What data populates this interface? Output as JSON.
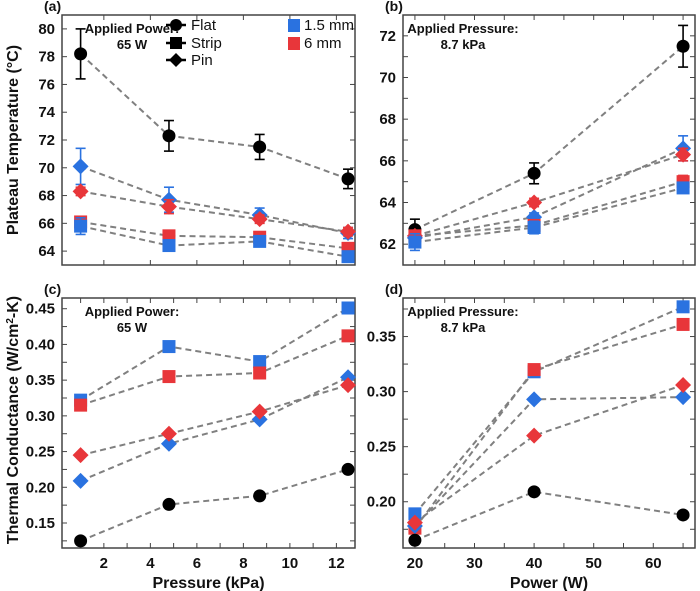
{
  "colors": {
    "blue": "#2a72e0",
    "red": "#e8363a",
    "black": "#000000",
    "line": "#808080",
    "axis": "#444444"
  },
  "legend": {
    "shapes": [
      {
        "label": "Flat",
        "marker": "circle"
      },
      {
        "label": "Strip",
        "marker": "square"
      },
      {
        "label": "Pin",
        "marker": "diamond"
      }
    ],
    "sizes": [
      {
        "label": "1.5 mm",
        "color": "blue"
      },
      {
        "label": "6 mm",
        "color": "red"
      }
    ],
    "placement": "top-right of panel (a)"
  },
  "ylabels": {
    "top": "Plateau Temperature (°C)",
    "bottom_prefix": "Thermal Conductance (W/cm",
    "bottom_sup": "2",
    "bottom_suffix": "-K)"
  },
  "chart_data": [
    {
      "id": "a",
      "panel_label": "(a)",
      "type": "scatter",
      "annotation": [
        "Applied Power:",
        "65 W"
      ],
      "xlabel": "",
      "ylabel": "Plateau Temperature (°C)",
      "xlim": [
        0.2,
        12.8
      ],
      "ylim": [
        63,
        81
      ],
      "xticks": [
        2,
        4,
        6,
        8,
        10,
        12
      ],
      "show_xtick_labels": false,
      "yticks": [
        64,
        66,
        68,
        70,
        72,
        74,
        76,
        78,
        80
      ],
      "ytick_labels": [
        "64",
        "66",
        "68",
        "70",
        "72",
        "74",
        "76",
        "78",
        "80"
      ],
      "x": [
        1.0,
        4.8,
        8.7,
        12.5
      ],
      "series": [
        {
          "name": "Flat",
          "marker": "circle",
          "color": "black",
          "values": [
            78.2,
            72.3,
            71.5,
            69.2
          ],
          "err": [
            1.8,
            1.1,
            0.9,
            0.7
          ]
        },
        {
          "name": "Pin 1.5 mm",
          "marker": "diamond",
          "color": "blue",
          "values": [
            70.1,
            67.7,
            66.6,
            65.3
          ],
          "err": [
            1.3,
            0.9,
            0.5,
            0.4
          ]
        },
        {
          "name": "Pin 6 mm",
          "marker": "diamond",
          "color": "red",
          "values": [
            68.3,
            67.2,
            66.3,
            65.4
          ],
          "err": [
            0.3,
            0.5,
            0.3,
            0.3
          ]
        },
        {
          "name": "Strip 6 mm",
          "marker": "square",
          "color": "red",
          "values": [
            66.1,
            65.1,
            65.0,
            64.2
          ],
          "err": [
            0.3,
            0.2,
            0.2,
            0.3
          ]
        },
        {
          "name": "Strip 1.5 mm",
          "marker": "square",
          "color": "blue",
          "values": [
            65.8,
            64.4,
            64.7,
            63.6
          ],
          "err": [
            0.6,
            0.2,
            0.2,
            0.2
          ]
        }
      ]
    },
    {
      "id": "b",
      "panel_label": "(b)",
      "type": "scatter",
      "annotation": [
        "Applied Pressure:",
        "8.7 kPa"
      ],
      "xlabel": "",
      "ylabel": "",
      "xlim": [
        18,
        67
      ],
      "ylim": [
        61,
        73
      ],
      "xticks": [
        20,
        25,
        30,
        35,
        40,
        45,
        50,
        55,
        60,
        65
      ],
      "show_xtick_labels": false,
      "yticks": [
        62,
        63,
        64,
        65,
        66,
        67,
        68,
        69,
        70,
        71,
        72
      ],
      "ytick_labels": [
        "62",
        "",
        "64",
        "",
        "66",
        "",
        "68",
        "",
        "70",
        "",
        "72"
      ],
      "x": [
        20,
        40,
        65
      ],
      "series": [
        {
          "name": "Flat",
          "marker": "circle",
          "color": "black",
          "values": [
            62.7,
            65.4,
            71.5
          ],
          "err": [
            0.5,
            0.5,
            1.0
          ]
        },
        {
          "name": "Pin 1.5 mm",
          "marker": "diamond",
          "color": "blue",
          "values": [
            62.3,
            63.3,
            66.6
          ],
          "err": [
            0.2,
            0.2,
            0.6
          ]
        },
        {
          "name": "Pin 6 mm",
          "marker": "diamond",
          "color": "red",
          "values": [
            62.4,
            64.0,
            66.3
          ],
          "err": [
            0.2,
            0.2,
            0.3
          ]
        },
        {
          "name": "Strip 6 mm",
          "marker": "square",
          "color": "red",
          "values": [
            62.4,
            62.9,
            65.0
          ],
          "err": [
            0.2,
            0.2,
            0.3
          ]
        },
        {
          "name": "Strip 1.5 mm",
          "marker": "square",
          "color": "blue",
          "values": [
            62.1,
            62.8,
            64.7
          ],
          "err": [
            0.4,
            0.3,
            0.2
          ]
        }
      ]
    },
    {
      "id": "c",
      "panel_label": "(c)",
      "type": "scatter",
      "annotation": [
        "Applied Power:",
        "65 W"
      ],
      "xlabel": "Pressure (kPa)",
      "ylabel": "Thermal Conductance (W/cm²-K)",
      "xlim": [
        0.2,
        12.8
      ],
      "ylim": [
        0.115,
        0.465
      ],
      "xticks": [
        1,
        2,
        3,
        4,
        5,
        6,
        7,
        8,
        9,
        10,
        11,
        12
      ],
      "xtick_labels": [
        "",
        "2",
        "",
        "4",
        "",
        "6",
        "",
        "8",
        "",
        "10",
        "",
        "12"
      ],
      "show_xtick_labels": true,
      "yticks": [
        0.125,
        0.15,
        0.175,
        0.2,
        0.225,
        0.25,
        0.275,
        0.3,
        0.325,
        0.35,
        0.375,
        0.4,
        0.425,
        0.45
      ],
      "ytick_labels": [
        "",
        "0.15",
        "",
        "0.20",
        "",
        "0.25",
        "",
        "0.30",
        "",
        "0.35",
        "",
        "0.40",
        "",
        "0.45"
      ],
      "x": [
        1.0,
        4.8,
        8.7,
        12.5
      ],
      "series": [
        {
          "name": "Strip 1.5 mm",
          "marker": "square",
          "color": "blue",
          "values": [
            0.322,
            0.397,
            0.376,
            0.451
          ]
        },
        {
          "name": "Strip 6 mm",
          "marker": "square",
          "color": "red",
          "values": [
            0.315,
            0.355,
            0.36,
            0.412
          ]
        },
        {
          "name": "Pin 1.5 mm",
          "marker": "diamond",
          "color": "blue",
          "values": [
            0.209,
            0.261,
            0.295,
            0.354
          ]
        },
        {
          "name": "Pin 6 mm",
          "marker": "diamond",
          "color": "red",
          "values": [
            0.245,
            0.275,
            0.306,
            0.343
          ]
        },
        {
          "name": "Flat",
          "marker": "circle",
          "color": "black",
          "values": [
            0.125,
            0.176,
            0.188,
            0.225
          ]
        }
      ]
    },
    {
      "id": "d",
      "panel_label": "(d)",
      "type": "scatter",
      "annotation": [
        "Applied Pressure:",
        "8.7 kPa"
      ],
      "xlabel": "Power (W)",
      "ylabel": "",
      "xlim": [
        18,
        67
      ],
      "ylim": [
        0.158,
        0.385
      ],
      "xticks": [
        20,
        25,
        30,
        35,
        40,
        45,
        50,
        55,
        60,
        65
      ],
      "xtick_labels": [
        "20",
        "",
        "30",
        "",
        "40",
        "",
        "50",
        "",
        "60",
        ""
      ],
      "show_xtick_labels": true,
      "yticks": [
        0.175,
        0.2,
        0.225,
        0.25,
        0.275,
        0.3,
        0.325,
        0.35,
        0.375
      ],
      "ytick_labels": [
        "",
        "0.20",
        "",
        "0.25",
        "",
        "0.30",
        "",
        "0.35",
        ""
      ],
      "x": [
        20,
        40,
        65
      ],
      "series": [
        {
          "name": "Strip 1.5 mm",
          "marker": "square",
          "color": "blue",
          "values": [
            0.189,
            0.318,
            0.377
          ]
        },
        {
          "name": "Strip 6 mm",
          "marker": "square",
          "color": "red",
          "values": [
            0.176,
            0.32,
            0.361
          ]
        },
        {
          "name": "Pin 1.5 mm",
          "marker": "diamond",
          "color": "blue",
          "values": [
            0.178,
            0.293,
            0.295
          ]
        },
        {
          "name": "Pin 6 mm",
          "marker": "diamond",
          "color": "red",
          "values": [
            0.181,
            0.26,
            0.306
          ]
        },
        {
          "name": "Flat",
          "marker": "circle",
          "color": "black",
          "values": [
            0.165,
            0.209,
            0.188
          ]
        }
      ]
    }
  ]
}
